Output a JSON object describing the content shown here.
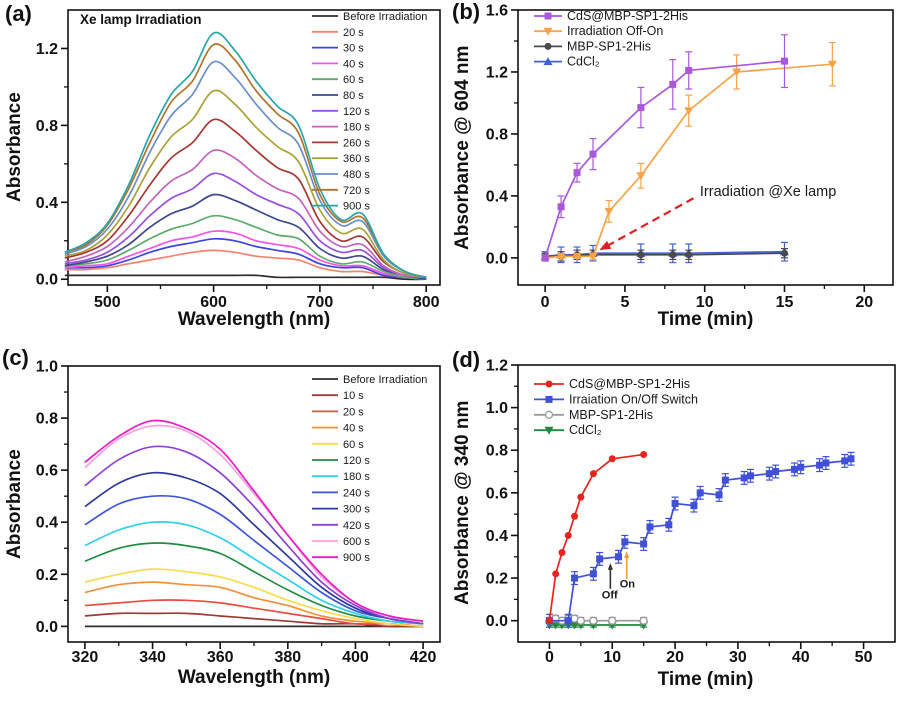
{
  "chart_data": [
    {
      "id": "a",
      "type": "line",
      "panel_label": "(a)",
      "inner_title": "Xe lamp Irradiation",
      "xlabel": "Wavelength (nm)",
      "ylabel": "Absorbance",
      "xlim": [
        463,
        813
      ],
      "ylim": [
        -0.03,
        1.4
      ],
      "xticks": [
        500,
        600,
        700,
        800
      ],
      "yticks": [
        0.0,
        0.4,
        0.8,
        1.2
      ],
      "grid": false,
      "legend_position": "top-right",
      "x": [
        460,
        480,
        500,
        520,
        540,
        560,
        580,
        600,
        620,
        640,
        660,
        680,
        700,
        720,
        740,
        760,
        780,
        800
      ],
      "series": [
        {
          "name": "Before Irradiation",
          "color": "#2e2e2e",
          "values": [
            0.02,
            0.02,
            0.02,
            0.02,
            0.02,
            0.02,
            0.02,
            0.02,
            0.02,
            0.02,
            0.01,
            0.01,
            0.01,
            0.01,
            0.01,
            0.01,
            0.0,
            0.0
          ]
        },
        {
          "name": "20 s",
          "color": "#f4846f",
          "values": [
            0.05,
            0.05,
            0.06,
            0.08,
            0.1,
            0.12,
            0.14,
            0.15,
            0.14,
            0.12,
            0.11,
            0.1,
            0.06,
            0.04,
            0.04,
            0.02,
            0.01,
            0.0
          ]
        },
        {
          "name": "30 s",
          "color": "#3c46dd",
          "values": [
            0.06,
            0.06,
            0.07,
            0.1,
            0.14,
            0.17,
            0.19,
            0.21,
            0.2,
            0.17,
            0.15,
            0.13,
            0.08,
            0.06,
            0.06,
            0.02,
            0.01,
            0.0
          ]
        },
        {
          "name": "40 s",
          "color": "#f654e8",
          "values": [
            0.06,
            0.07,
            0.08,
            0.12,
            0.16,
            0.2,
            0.22,
            0.25,
            0.24,
            0.2,
            0.18,
            0.16,
            0.1,
            0.07,
            0.07,
            0.03,
            0.01,
            0.0
          ]
        },
        {
          "name": "60 s",
          "color": "#5fa96a",
          "values": [
            0.07,
            0.08,
            0.1,
            0.15,
            0.21,
            0.26,
            0.29,
            0.33,
            0.31,
            0.27,
            0.23,
            0.21,
            0.12,
            0.08,
            0.09,
            0.04,
            0.01,
            0.0
          ]
        },
        {
          "name": "80 s",
          "color": "#3d478f",
          "values": [
            0.07,
            0.09,
            0.12,
            0.18,
            0.27,
            0.34,
            0.38,
            0.44,
            0.41,
            0.36,
            0.31,
            0.27,
            0.16,
            0.11,
            0.12,
            0.05,
            0.02,
            0.0
          ]
        },
        {
          "name": "120 s",
          "color": "#9850e0",
          "values": [
            0.08,
            0.1,
            0.14,
            0.22,
            0.33,
            0.42,
            0.47,
            0.55,
            0.51,
            0.44,
            0.39,
            0.34,
            0.2,
            0.14,
            0.15,
            0.06,
            0.02,
            0.01
          ]
        },
        {
          "name": "180 s",
          "color": "#c364bd",
          "values": [
            0.09,
            0.12,
            0.17,
            0.27,
            0.4,
            0.51,
            0.57,
            0.67,
            0.63,
            0.54,
            0.47,
            0.42,
            0.25,
            0.17,
            0.18,
            0.07,
            0.02,
            0.01
          ]
        },
        {
          "name": "260 s",
          "color": "#a63833",
          "values": [
            0.11,
            0.14,
            0.2,
            0.33,
            0.49,
            0.63,
            0.71,
            0.83,
            0.77,
            0.67,
            0.58,
            0.52,
            0.3,
            0.2,
            0.22,
            0.09,
            0.03,
            0.01
          ]
        },
        {
          "name": "360 s",
          "color": "#aaa13a",
          "values": [
            0.12,
            0.15,
            0.23,
            0.38,
            0.58,
            0.74,
            0.83,
            0.98,
            0.91,
            0.79,
            0.69,
            0.61,
            0.36,
            0.24,
            0.26,
            0.1,
            0.03,
            0.01
          ]
        },
        {
          "name": "480 s",
          "color": "#6b8fc9",
          "values": [
            0.13,
            0.17,
            0.26,
            0.43,
            0.66,
            0.85,
            0.96,
            1.13,
            1.05,
            0.91,
            0.79,
            0.7,
            0.41,
            0.28,
            0.3,
            0.12,
            0.04,
            0.01
          ]
        },
        {
          "name": "720 s",
          "color": "#b1722c",
          "values": [
            0.14,
            0.18,
            0.28,
            0.47,
            0.71,
            0.92,
            1.03,
            1.22,
            1.14,
            0.98,
            0.86,
            0.76,
            0.44,
            0.3,
            0.32,
            0.13,
            0.04,
            0.01
          ]
        },
        {
          "name": "900 s",
          "color": "#27a7ad",
          "values": [
            0.14,
            0.19,
            0.29,
            0.49,
            0.75,
            0.96,
            1.08,
            1.28,
            1.19,
            1.03,
            0.9,
            0.8,
            0.47,
            0.31,
            0.34,
            0.13,
            0.04,
            0.01
          ]
        }
      ]
    },
    {
      "id": "b",
      "type": "scatter",
      "panel_label": "(b)",
      "xlabel": "Time (min)",
      "ylabel": "Absorbance @ 604 nm",
      "xlim": [
        -1.7,
        21.8
      ],
      "ylim": [
        -0.175,
        1.6
      ],
      "xticks": [
        0,
        5,
        10,
        15,
        20
      ],
      "yticks": [
        0.0,
        0.4,
        0.8,
        1.2,
        1.6
      ],
      "grid": false,
      "legend_position": "top-left",
      "series": [
        {
          "name": "CdS@MBP-SP1-2His",
          "color": "#a958dc",
          "marker": "square",
          "x": [
            0,
            1,
            2,
            3,
            6,
            8,
            9,
            15
          ],
          "y": [
            0.0,
            0.33,
            0.55,
            0.67,
            0.97,
            1.12,
            1.21,
            1.27
          ],
          "err": [
            0.02,
            0.07,
            0.06,
            0.1,
            0.13,
            0.16,
            0.12,
            0.17
          ]
        },
        {
          "name": "Irradiation Off-On",
          "color": "#f9a349",
          "marker": "triangle-down",
          "x": [
            0,
            1,
            2,
            3,
            4,
            6,
            9,
            12,
            18
          ],
          "y": [
            0.0,
            0.01,
            0.01,
            0.01,
            0.3,
            0.53,
            0.95,
            1.2,
            1.25
          ],
          "err": [
            0.01,
            0.01,
            0.01,
            0.02,
            0.07,
            0.08,
            0.1,
            0.11,
            0.14
          ]
        },
        {
          "name": "MBP-SP1-2His",
          "color": "#4a4a4a",
          "marker": "circle",
          "x": [
            0,
            1,
            2,
            3,
            6,
            8,
            9,
            15
          ],
          "y": [
            0.01,
            0.01,
            0.02,
            0.02,
            0.02,
            0.02,
            0.02,
            0.03
          ],
          "err": [
            0.02,
            0.03,
            0.03,
            0.03,
            0.03,
            0.03,
            0.03,
            0.03
          ]
        },
        {
          "name": "CdCl₂",
          "color": "#3f63d6",
          "marker": "triangle-up",
          "x": [
            0,
            1,
            2,
            3,
            6,
            8,
            9,
            15
          ],
          "y": [
            0.01,
            0.02,
            0.02,
            0.03,
            0.03,
            0.03,
            0.03,
            0.04
          ],
          "err": [
            0.03,
            0.05,
            0.05,
            0.05,
            0.06,
            0.06,
            0.06,
            0.06
          ]
        }
      ],
      "annotation": {
        "text": "Irradiation @Xe lamp",
        "text_color": "#1a1a1a",
        "arrow_color": "#e02020",
        "arrow_from": [
          9.3,
          0.385
        ],
        "arrow_to": [
          3.4,
          0.05
        ],
        "text_at": [
          9.7,
          0.4
        ]
      }
    },
    {
      "id": "c",
      "type": "line",
      "panel_label": "(c)",
      "xlabel": "Wavelength (nm)",
      "ylabel": "Absorbance",
      "xlim": [
        315,
        425
      ],
      "ylim": [
        -0.06,
        1.0
      ],
      "xticks": [
        320,
        340,
        360,
        380,
        400,
        420
      ],
      "yticks": [
        0.0,
        0.2,
        0.4,
        0.6,
        0.8,
        1.0
      ],
      "grid": false,
      "legend_position": "top-right",
      "x": [
        320,
        330,
        340,
        350,
        360,
        370,
        380,
        390,
        400,
        410,
        420
      ],
      "series": [
        {
          "name": "Before Irradiation",
          "color": "#2e2e2e",
          "values": [
            0.0,
            0.0,
            0.0,
            0.0,
            0.0,
            0.0,
            0.0,
            0.0,
            0.0,
            0.0,
            0.0
          ]
        },
        {
          "name": "10 s",
          "color": "#9c3b33",
          "values": [
            0.04,
            0.05,
            0.05,
            0.05,
            0.04,
            0.03,
            0.02,
            0.01,
            0.01,
            0.0,
            0.0
          ]
        },
        {
          "name": "20 s",
          "color": "#e84c42",
          "values": [
            0.08,
            0.09,
            0.1,
            0.1,
            0.09,
            0.07,
            0.05,
            0.03,
            0.01,
            0.01,
            0.0
          ]
        },
        {
          "name": "40 s",
          "color": "#f49038",
          "values": [
            0.13,
            0.16,
            0.17,
            0.16,
            0.15,
            0.11,
            0.08,
            0.04,
            0.02,
            0.01,
            0.0
          ]
        },
        {
          "name": "60 s",
          "color": "#f7dc4e",
          "values": [
            0.17,
            0.2,
            0.22,
            0.21,
            0.19,
            0.15,
            0.1,
            0.06,
            0.03,
            0.01,
            0.0
          ]
        },
        {
          "name": "120 s",
          "color": "#1f8c43",
          "values": [
            0.25,
            0.3,
            0.32,
            0.31,
            0.28,
            0.21,
            0.14,
            0.08,
            0.04,
            0.02,
            0.01
          ]
        },
        {
          "name": "180 s",
          "color": "#2fd0ee",
          "values": [
            0.31,
            0.37,
            0.4,
            0.39,
            0.34,
            0.26,
            0.18,
            0.1,
            0.05,
            0.02,
            0.01
          ]
        },
        {
          "name": "240 s",
          "color": "#3d55d8",
          "values": [
            0.39,
            0.47,
            0.5,
            0.49,
            0.43,
            0.33,
            0.23,
            0.13,
            0.06,
            0.03,
            0.01
          ]
        },
        {
          "name": "300 s",
          "color": "#2c3a9c",
          "values": [
            0.46,
            0.55,
            0.59,
            0.57,
            0.51,
            0.39,
            0.27,
            0.15,
            0.07,
            0.03,
            0.01
          ]
        },
        {
          "name": "420 s",
          "color": "#8f41d6",
          "values": [
            0.54,
            0.64,
            0.69,
            0.67,
            0.59,
            0.46,
            0.31,
            0.17,
            0.08,
            0.03,
            0.01
          ]
        },
        {
          "name": "600 s",
          "color": "#f9a0e2",
          "values": [
            0.61,
            0.72,
            0.77,
            0.75,
            0.66,
            0.51,
            0.35,
            0.19,
            0.09,
            0.04,
            0.02
          ]
        },
        {
          "name": "900 s",
          "color": "#ea1cc0",
          "values": [
            0.63,
            0.73,
            0.79,
            0.76,
            0.68,
            0.52,
            0.35,
            0.2,
            0.09,
            0.04,
            0.02
          ]
        }
      ]
    },
    {
      "id": "d",
      "type": "scatter",
      "panel_label": "(d)",
      "xlabel": "Time (min)",
      "ylabel": "Absorbance @ 340 nm",
      "xlim": [
        -5,
        55
      ],
      "ylim": [
        -0.1,
        1.2
      ],
      "xticks": [
        0,
        10,
        20,
        30,
        40,
        50
      ],
      "yticks": [
        0.0,
        0.2,
        0.4,
        0.6,
        0.8,
        1.0,
        1.2
      ],
      "grid": false,
      "legend_position": "top-left",
      "series": [
        {
          "name": "CdS@MBP-SP1-2His",
          "color": "#e8241d",
          "marker": "circle",
          "x": [
            0,
            1,
            2,
            3,
            4,
            5,
            7,
            10,
            15
          ],
          "y": [
            0.0,
            0.22,
            0.32,
            0.4,
            0.49,
            0.58,
            0.69,
            0.76,
            0.78
          ]
        },
        {
          "name": "Irraiation On/Off Switch",
          "color": "#4150d8",
          "marker": "square",
          "x": [
            0,
            3,
            4,
            7,
            8,
            11,
            12,
            15,
            16,
            19,
            20,
            23,
            24,
            27,
            28,
            31,
            32,
            35,
            36,
            39,
            40,
            43,
            44,
            47,
            48
          ],
          "y": [
            0.0,
            0.0,
            0.2,
            0.22,
            0.29,
            0.3,
            0.37,
            0.36,
            0.44,
            0.45,
            0.55,
            0.54,
            0.6,
            0.59,
            0.66,
            0.67,
            0.68,
            0.69,
            0.7,
            0.71,
            0.72,
            0.73,
            0.74,
            0.75,
            0.76
          ],
          "err": 0.03
        },
        {
          "name": "MBP-SP1-2His",
          "color": "#9a9a9a",
          "marker": "circle-open",
          "x": [
            0,
            1,
            2,
            3,
            4,
            5,
            7,
            10,
            15
          ],
          "y": [
            0.0,
            0.01,
            0.0,
            0.01,
            0.01,
            0.0,
            0.0,
            0.0,
            0.0
          ],
          "err": 0.015
        },
        {
          "name": "CdCl₂",
          "color": "#1f8a3c",
          "marker": "triangle-down",
          "x": [
            0,
            1,
            2,
            3,
            4,
            5,
            7,
            10,
            15
          ],
          "y": [
            -0.02,
            -0.02,
            -0.02,
            -0.02,
            -0.02,
            -0.02,
            -0.02,
            -0.02,
            -0.02
          ],
          "err": 0.01
        }
      ],
      "annotations": [
        {
          "text": "Off",
          "color": "#333333",
          "x": 9.7,
          "y_from": 0.15,
          "y_to": 0.27,
          "text_x": 9.6,
          "text_y": 0.105
        },
        {
          "text": "On",
          "color": "#f59b2c",
          "x": 12.3,
          "y_from": 0.195,
          "y_to": 0.325,
          "text_x": 12.4,
          "text_y": 0.155
        }
      ]
    }
  ]
}
